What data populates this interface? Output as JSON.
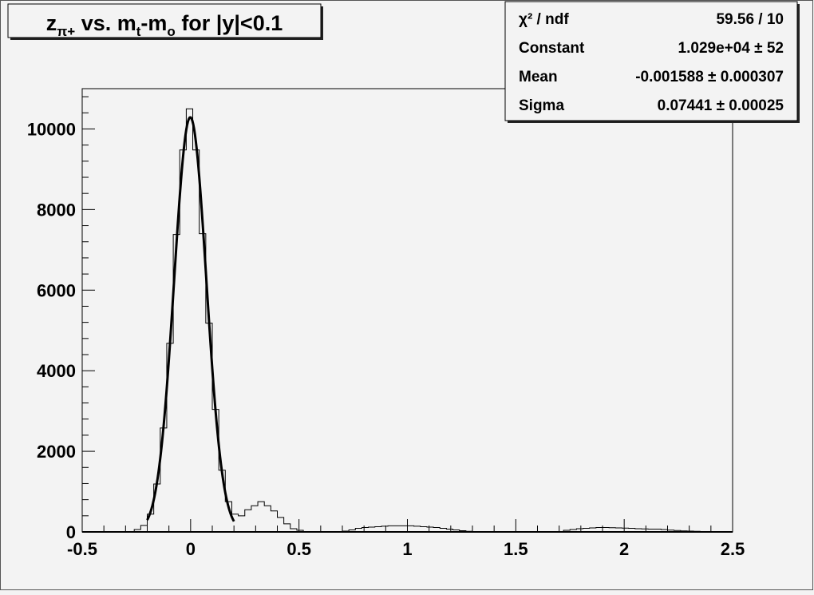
{
  "chart_data": {
    "type": "bar",
    "style": "step-histogram-with-gaussian-fit",
    "title": "z_{π+} vs. m_t-m_o for |y|<0.1",
    "title_parts": {
      "a": "z",
      "a_sub": "π+",
      "b": " vs. m",
      "b_sub": "t",
      "c": "-m",
      "c_sub": "o",
      "d": " for |y|<0.1"
    },
    "xlabel": "",
    "ylabel": "",
    "xlim": [
      -0.5,
      2.5
    ],
    "ylim": [
      0,
      11000
    ],
    "grid": false,
    "x_ticks": [
      "-0.5",
      "0",
      "0.5",
      "1",
      "1.5",
      "2",
      "2.5"
    ],
    "y_ticks": [
      "0",
      "2000",
      "4000",
      "6000",
      "8000",
      "10000"
    ],
    "bin_width": 0.03,
    "values": [
      0,
      0,
      0,
      0,
      0,
      0,
      0,
      0,
      60,
      160,
      440,
      1190,
      2580,
      4680,
      7380,
      9480,
      10500,
      9480,
      7400,
      5180,
      3040,
      1530,
      750,
      440,
      400,
      550,
      650,
      750,
      650,
      520,
      360,
      200,
      80,
      40,
      0,
      0,
      0,
      0,
      0,
      0,
      20,
      50,
      90,
      110,
      120,
      130,
      140,
      150,
      150,
      150,
      150,
      140,
      130,
      120,
      110,
      90,
      70,
      50,
      30,
      15,
      0,
      0,
      0,
      0,
      0,
      0,
      0,
      0,
      0,
      0,
      0,
      0,
      0,
      10,
      40,
      60,
      80,
      90,
      100,
      110,
      110,
      105,
      100,
      95,
      90,
      80,
      75,
      70,
      70,
      60,
      45,
      35,
      25,
      20,
      15,
      10,
      5,
      0,
      0,
      0
    ],
    "fit": {
      "function": "gaus",
      "constant": 10290,
      "mean": -0.001588,
      "sigma": 0.07441,
      "range": [
        -0.2,
        0.2
      ]
    },
    "legend_placement": "top-right",
    "stats": [
      {
        "label": "χ² / ndf",
        "value": "59.56 / 10"
      },
      {
        "label": "Constant",
        "value": "1.029e+04 ± 52"
      },
      {
        "label": "Mean",
        "value": "-0.001588 ± 0.000307"
      },
      {
        "label": "Sigma",
        "value": "0.07441 ± 0.00025"
      }
    ]
  }
}
